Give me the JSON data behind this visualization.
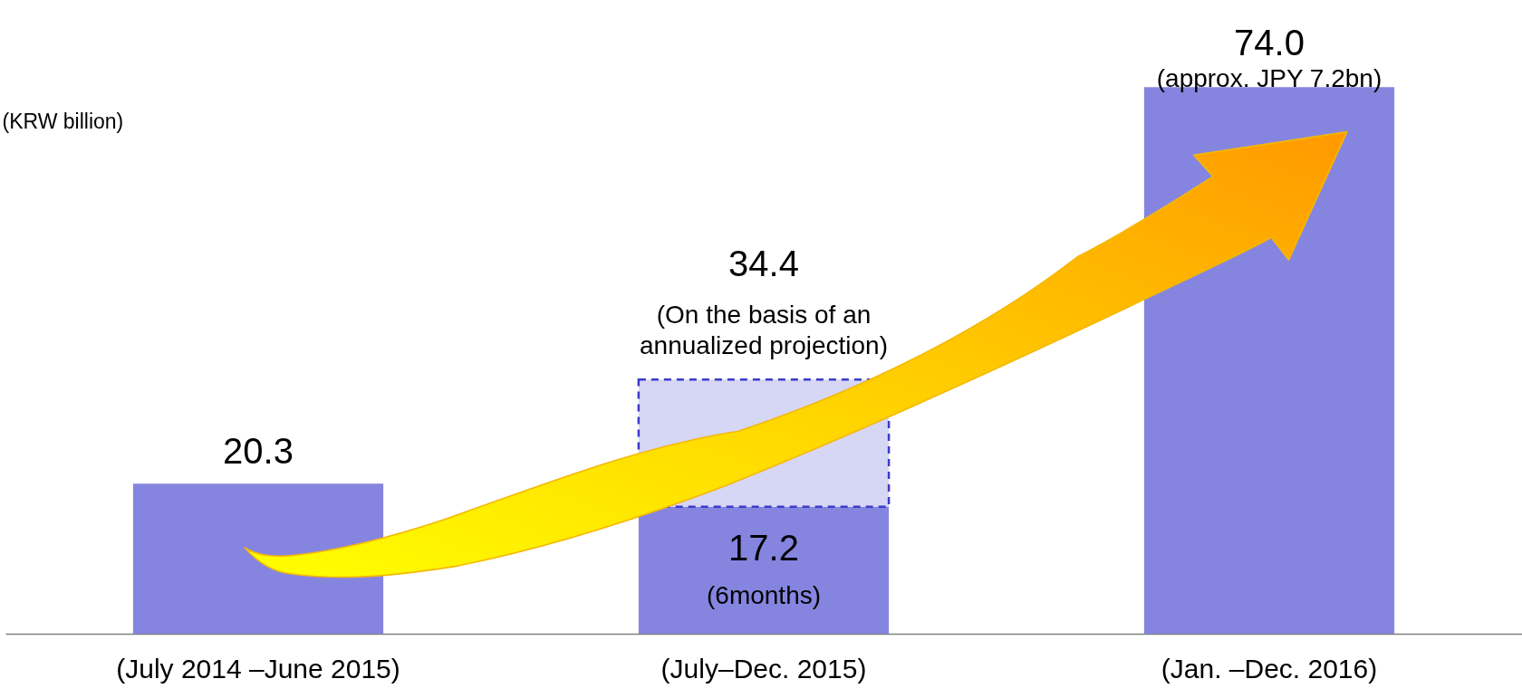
{
  "chart_data": {
    "type": "bar",
    "ylabel": "(KRW billion)",
    "categories": [
      "(July 2014 –June 2015)",
      "(July–Dec. 2015)",
      "(Jan. –Dec. 2016)"
    ],
    "stacked": true,
    "series": [
      {
        "color": "#8585e0",
        "values": [
          20.3,
          17.2,
          74.0
        ],
        "value_labels": [
          "20.3",
          "17.2",
          "74.0"
        ]
      },
      {
        "color": "#d6d6f5",
        "values": [
          null,
          17.2,
          null
        ],
        "line_style": "dashed"
      }
    ],
    "totals": [
      null,
      "34.4",
      null
    ],
    "annotations": [
      "(approx. JPY 7.2bn)",
      "(On the basis of an\nannualized projection)",
      "(6months)"
    ]
  }
}
